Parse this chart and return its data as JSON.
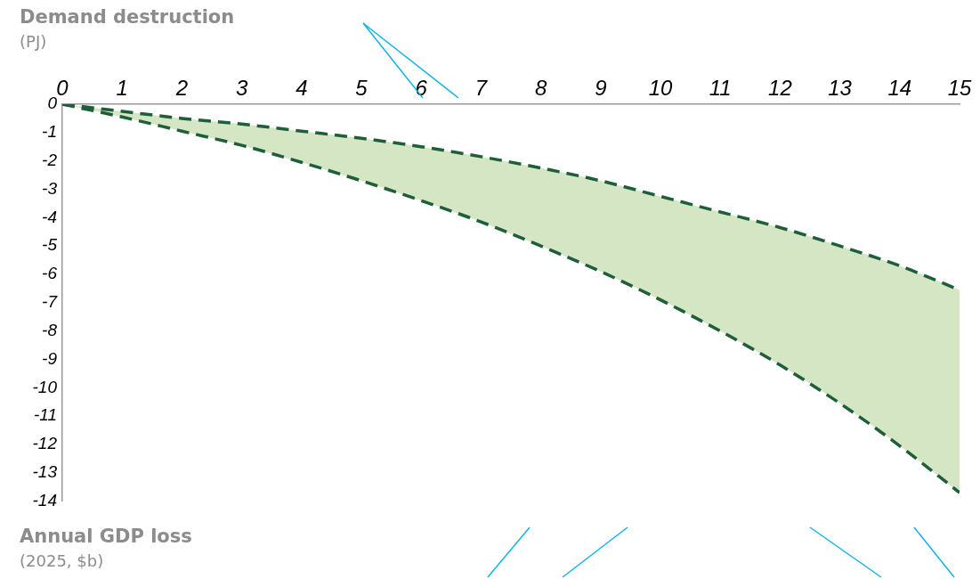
{
  "chart_data": {
    "type": "line",
    "ylabel": "Demand destruction\n(PJ)",
    "xlabel": "Annual GDP loss\n(2025, $b)",
    "x": [
      0,
      1,
      2,
      3,
      4,
      5,
      6,
      7,
      8,
      9,
      10,
      11,
      12,
      13,
      14,
      15
    ],
    "series": [
      {
        "type": "line",
        "color": "#1e5e3a",
        "values": [
          0,
          -0.25,
          -0.5,
          -0.7,
          -0.95,
          -1.2,
          -1.5,
          -1.85,
          -2.25,
          -2.7,
          -3.25,
          -3.8,
          -4.35,
          -5.0,
          -5.7,
          -6.55
        ]
      },
      {
        "type": "area",
        "color": "#d5e6c4",
        "values": [
          0,
          -0.45,
          -0.95,
          -1.45,
          -2.05,
          -2.7,
          -3.4,
          -4.15,
          -5.0,
          -5.9,
          -6.9,
          -8.0,
          -9.2,
          -10.55,
          -12.05,
          -13.7
        ]
      }
    ],
    "xlim": [
      0,
      15
    ],
    "xticks": [
      0,
      1,
      2,
      3,
      4,
      5,
      6,
      7,
      8,
      9,
      10,
      11,
      12,
      13,
      14,
      15
    ],
    "ylim": [
      -14,
      0
    ],
    "yticks": [
      0,
      -1,
      -2,
      -3,
      -4,
      -5,
      -6,
      -7,
      -8,
      -9,
      -10,
      -11,
      -12,
      -13,
      -14
    ],
    "line_style": "dashed",
    "marker": "none",
    "grid": false,
    "legend": false
  }
}
